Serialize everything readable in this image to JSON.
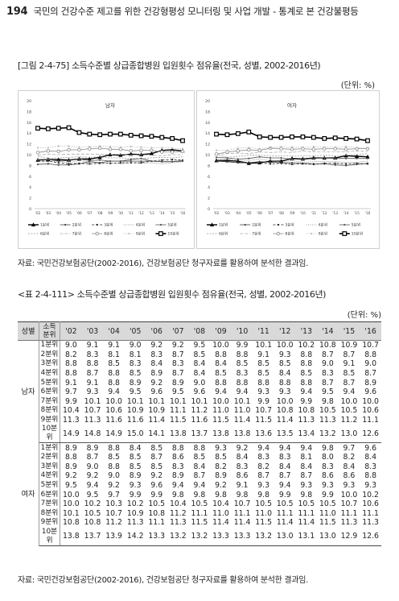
{
  "header": {
    "page_number": "194",
    "title": "국민의 건강수준 제고를 위한 건강형평성 모니터링 및 사업 개발 - 통계로 본 건강불평등"
  },
  "figure": {
    "title": "[그림 2-4-75] 소득수준별 상급종합병원 입원횟수 점유율(전국, 성별, 2002-2016년)",
    "unit": "(단위: %)",
    "source": "자료: 국민건강보험공단(2002-2016), 건강보험공단 청구자료를 활용하여 분석한 결과임."
  },
  "table": {
    "title": "<표 2-4-111> 소득수준별 상급종합병원 입원횟수 점유율(전국, 성별, 2002-2016년)",
    "unit": "(단위: %)",
    "source": "자료: 국민건강보험공단(2002-2016), 건강보험공단 청구자료를 활용하여 분석한 결과임.",
    "col_sex": "성별",
    "col_band": "소득분위"
  },
  "chart_data": [
    {
      "type": "line",
      "title": "남자",
      "x": [
        "'02",
        "'03",
        "'04",
        "'05",
        "'06",
        "'07",
        "'08",
        "'09",
        "'10",
        "'11",
        "'12",
        "'13",
        "'14",
        "'15",
        "'16"
      ],
      "ylim": [
        0,
        20
      ],
      "yticks": [
        0,
        2,
        4,
        6,
        8,
        10,
        12,
        14,
        16,
        18,
        20
      ],
      "grid": false,
      "legend": "bottom",
      "series": [
        {
          "name": "1분위",
          "values": [
            9.0,
            9.1,
            9.1,
            9.0,
            9.2,
            9.2,
            9.5,
            10.0,
            9.9,
            10.1,
            10.0,
            10.2,
            10.8,
            10.9,
            10.7
          ]
        },
        {
          "name": "2분위",
          "values": [
            8.2,
            8.3,
            8.1,
            8.1,
            8.3,
            8.7,
            8.5,
            8.8,
            8.8,
            9.1,
            9.3,
            8.8,
            8.7,
            8.7,
            8.8
          ]
        },
        {
          "name": "3분위",
          "values": [
            8.8,
            8.8,
            8.5,
            8.3,
            8.4,
            8.3,
            8.4,
            8.4,
            8.5,
            8.5,
            8.5,
            8.8,
            9.0,
            9.1,
            9.0
          ]
        },
        {
          "name": "4분위",
          "values": [
            8.8,
            8.7,
            8.8,
            8.5,
            8.9,
            8.7,
            8.4,
            8.5,
            8.3,
            8.5,
            8.4,
            8.5,
            8.3,
            8.5,
            8.7
          ]
        },
        {
          "name": "5분위",
          "values": [
            9.1,
            9.1,
            8.8,
            8.9,
            9.2,
            8.9,
            9.0,
            8.8,
            8.8,
            8.8,
            8.8,
            8.8,
            8.7,
            8.7,
            8.9
          ]
        },
        {
          "name": "6분위",
          "values": [
            9.7,
            9.3,
            9.4,
            9.5,
            9.6,
            9.5,
            9.6,
            9.4,
            9.4,
            9.3,
            9.3,
            9.4,
            9.5,
            9.4,
            9.6
          ]
        },
        {
          "name": "7분위",
          "values": [
            9.9,
            10.1,
            10.0,
            10.1,
            10.1,
            10.1,
            10.1,
            10.0,
            10.1,
            9.9,
            10.0,
            9.9,
            9.8,
            10.0,
            10.0
          ]
        },
        {
          "name": "8분위",
          "values": [
            10.4,
            10.7,
            10.6,
            10.9,
            10.9,
            11.1,
            11.2,
            11.0,
            11.0,
            10.7,
            10.8,
            10.8,
            10.5,
            10.5,
            10.6
          ]
        },
        {
          "name": "9분위",
          "values": [
            11.3,
            11.3,
            11.6,
            11.6,
            11.4,
            11.5,
            11.6,
            11.5,
            11.4,
            11.5,
            11.4,
            11.3,
            11.3,
            11.2,
            11.1
          ]
        },
        {
          "name": "10분위",
          "values": [
            14.9,
            14.8,
            14.9,
            15.0,
            14.1,
            13.8,
            13.7,
            13.8,
            13.8,
            13.6,
            13.5,
            13.4,
            13.2,
            13.0,
            12.6
          ]
        }
      ]
    },
    {
      "type": "line",
      "title": "여자",
      "x": [
        "'02",
        "'03",
        "'04",
        "'05",
        "'06",
        "'07",
        "'08",
        "'09",
        "'10",
        "'11",
        "'12",
        "'13",
        "'14",
        "'15",
        "'16"
      ],
      "ylim": [
        0,
        20
      ],
      "yticks": [
        0,
        2,
        4,
        6,
        8,
        10,
        12,
        14,
        16,
        18,
        20
      ],
      "grid": false,
      "legend": "bottom",
      "series": [
        {
          "name": "1분위",
          "values": [
            8.9,
            8.9,
            8.8,
            8.4,
            8.5,
            8.8,
            8.8,
            9.3,
            9.2,
            9.4,
            9.4,
            9.4,
            9.8,
            9.7,
            9.6
          ]
        },
        {
          "name": "2분위",
          "values": [
            8.8,
            8.7,
            8.5,
            8.5,
            8.7,
            8.6,
            8.5,
            8.5,
            8.4,
            8.3,
            8.3,
            8.1,
            8.0,
            8.2,
            8.4
          ]
        },
        {
          "name": "3분위",
          "values": [
            8.9,
            9.0,
            8.8,
            8.5,
            8.5,
            8.3,
            8.4,
            8.2,
            8.3,
            8.2,
            8.4,
            8.4,
            8.3,
            8.4,
            8.3
          ]
        },
        {
          "name": "4분위",
          "values": [
            9.2,
            9.2,
            9.0,
            8.9,
            9.2,
            8.9,
            8.7,
            8.9,
            8.6,
            8.7,
            8.7,
            8.7,
            8.6,
            8.6,
            8.8
          ]
        },
        {
          "name": "5분위",
          "values": [
            9.5,
            9.4,
            9.2,
            9.3,
            9.6,
            9.4,
            9.4,
            9.2,
            9.1,
            9.3,
            9.4,
            9.3,
            9.3,
            9.3,
            9.3
          ]
        },
        {
          "name": "6분위",
          "values": [
            10.0,
            9.5,
            9.7,
            9.9,
            9.9,
            9.8,
            9.8,
            9.8,
            9.8,
            9.8,
            9.9,
            9.8,
            9.9,
            10.0,
            10.2
          ]
        },
        {
          "name": "7분위",
          "values": [
            10.0,
            10.2,
            10.3,
            10.2,
            10.5,
            10.4,
            10.5,
            10.4,
            10.7,
            10.5,
            10.5,
            10.5,
            10.5,
            10.7,
            10.6
          ]
        },
        {
          "name": "8분위",
          "values": [
            10.1,
            10.5,
            10.7,
            10.9,
            10.8,
            11.2,
            11.1,
            11.0,
            11.1,
            11.0,
            11.1,
            11.1,
            11.0,
            11.1,
            11.1
          ]
        },
        {
          "name": "9분위",
          "values": [
            10.8,
            10.8,
            11.2,
            11.3,
            11.1,
            11.3,
            11.5,
            11.4,
            11.4,
            11.5,
            11.4,
            11.4,
            11.5,
            11.3,
            11.3
          ]
        },
        {
          "name": "10분위",
          "values": [
            13.8,
            13.7,
            13.9,
            14.2,
            13.3,
            13.2,
            13.2,
            13.3,
            13.3,
            13.2,
            13.0,
            13.1,
            13.0,
            12.9,
            12.6
          ]
        }
      ]
    }
  ],
  "styles": {
    "series": [
      {
        "color": "#000000",
        "width": 1.4,
        "dash": "",
        "marker": "triangle"
      },
      {
        "color": "#444444",
        "width": 0.8,
        "dash": "",
        "marker": "dot"
      },
      {
        "color": "#222222",
        "width": 0.8,
        "dash": "3,2",
        "marker": "dot"
      },
      {
        "color": "#777777",
        "width": 0.8,
        "dash": "1,1.5",
        "marker": ""
      },
      {
        "color": "#555555",
        "width": 0.8,
        "dash": "",
        "marker": "dot"
      },
      {
        "color": "#999999",
        "width": 0.8,
        "dash": "2,1.5",
        "marker": ""
      },
      {
        "color": "#aaaaaa",
        "width": 0.8,
        "dash": "4,2",
        "marker": ""
      },
      {
        "color": "#888888",
        "width": 0.8,
        "dash": "",
        "marker": "circle"
      },
      {
        "color": "#bbbbbb",
        "width": 0.8,
        "dash": "1.5,1.5",
        "marker": "dot"
      },
      {
        "color": "#000000",
        "width": 1.6,
        "dash": "",
        "marker": "square"
      }
    ]
  }
}
